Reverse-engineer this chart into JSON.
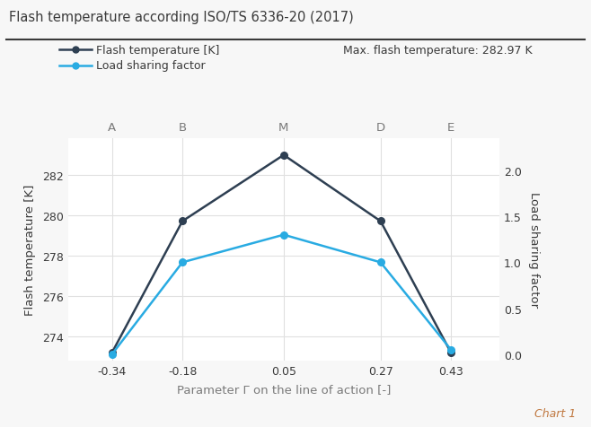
{
  "title": "Flash temperature according ISO/TS 6336-20 (2017)",
  "chart_label": "Chart 1",
  "x_values": [
    -0.34,
    -0.18,
    0.05,
    0.27,
    0.43
  ],
  "x_labels": [
    "-0.34",
    "-0.18",
    "0.05",
    "0.27",
    "0.43"
  ],
  "point_labels": [
    "A",
    "B",
    "M",
    "D",
    "E"
  ],
  "flash_temp": [
    273.2,
    279.7,
    282.97,
    279.7,
    273.2
  ],
  "load_sharing": [
    0.0,
    1.0,
    1.3,
    1.0,
    0.05
  ],
  "flash_color": "#2e3f52",
  "load_color": "#29abe2",
  "xlabel": "Parameter Γ on the line of action [-]",
  "ylabel_left": "Flash temperature [K]",
  "ylabel_right": "Load sharing factor",
  "ylim_left": [
    272.8,
    283.8
  ],
  "ylim_right": [
    -0.07,
    2.35
  ],
  "yticks_left": [
    274,
    276,
    278,
    280,
    282
  ],
  "yticks_right": [
    0,
    0.5,
    1,
    1.5,
    2
  ],
  "max_flash_label": "Max. flash temperature: 282.97 K",
  "legend_flash": "Flash temperature [K]",
  "legend_load": "Load sharing factor",
  "bg_color": "#f7f7f7",
  "plot_bg_color": "#ffffff",
  "title_color": "#3a3a3a",
  "tick_label_color": "#3a3a3a",
  "axis_label_color": "#3a3a3a",
  "xlabel_color": "#7a7a7a",
  "chart1_color": "#c07840",
  "max_flash_color": "#7a7a7a",
  "grid_color": "#e0e0e0",
  "separator_color": "#3a3a3a",
  "point_label_color": "#7a7a7a"
}
